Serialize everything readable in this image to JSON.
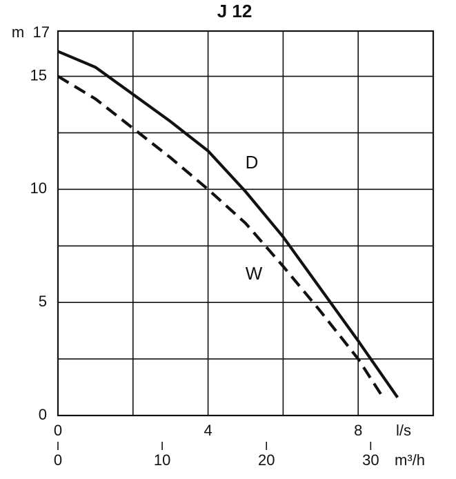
{
  "chart_data": {
    "type": "line",
    "title": "J 12",
    "y_label": "m",
    "x_label": "l/s",
    "x2_label": "m³/h",
    "xlim": [
      0,
      10
    ],
    "xticks": [
      0,
      4,
      8
    ],
    "x_minor_ticks": [
      2,
      6
    ],
    "x2lim": [
      0,
      36
    ],
    "x2ticks": [
      0,
      10,
      20,
      30
    ],
    "ylim": [
      0,
      17
    ],
    "yticks": [
      0,
      5,
      10,
      15,
      17
    ],
    "y_minor_ticks": [
      2.5,
      7.5,
      12.5
    ],
    "grid": true,
    "series": [
      {
        "name": "D",
        "color": "#111111",
        "dash": false,
        "x": [
          0,
          1,
          2,
          3,
          4,
          5,
          6,
          7,
          8,
          9.05
        ],
        "values": [
          16.1,
          15.4,
          14.2,
          13.0,
          11.7,
          9.9,
          7.9,
          5.6,
          3.3,
          0.8
        ]
      },
      {
        "name": "W",
        "color": "#111111",
        "dash": true,
        "x": [
          0,
          1,
          2,
          3,
          4,
          5,
          6,
          7,
          8,
          8.7
        ],
        "values": [
          15.0,
          14.0,
          12.7,
          11.4,
          10.0,
          8.5,
          6.6,
          4.6,
          2.5,
          0.7
        ]
      }
    ]
  }
}
